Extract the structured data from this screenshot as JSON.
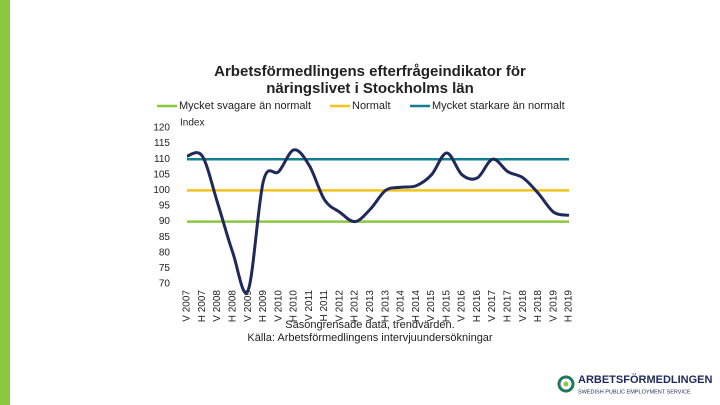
{
  "chart_data": {
    "type": "line",
    "title": [
      "Arbetsförmedlingens efterfrågeindikator för",
      "näringslivet i Stockholms län"
    ],
    "y_label": "Index",
    "categories": [
      "V 2007",
      "H 2007",
      "V 2008",
      "H 2008",
      "V 2009",
      "H 2009",
      "V 2010",
      "H 2010",
      "V 2011",
      "H 2011",
      "V 2012",
      "H 2012",
      "V 2013",
      "H 2013",
      "V 2014",
      "H 2014",
      "V 2015",
      "H 2015",
      "V 2016",
      "H 2016",
      "V 2017",
      "H 2017",
      "V 2018",
      "H 2018",
      "V 2019",
      "H 2019"
    ],
    "main_series": {
      "color": "#1f2a5a",
      "values": [
        111,
        111,
        96,
        80,
        68,
        103,
        106,
        113,
        108,
        97,
        93,
        90,
        94,
        100,
        101,
        101.5,
        105,
        112,
        105,
        104,
        110,
        106,
        104,
        99,
        93,
        92
      ]
    },
    "reference_lines": [
      {
        "name": "Mycket svagare än normalt",
        "color": "#8dc63f",
        "value": 90
      },
      {
        "name": "Normalt",
        "color": "#f0c419",
        "value": 100
      },
      {
        "name": "Mycket starkare än normalt",
        "color": "#13808f",
        "value": 110
      }
    ],
    "ylim": [
      70,
      120
    ],
    "yticks": [
      70,
      75,
      80,
      85,
      90,
      95,
      100,
      105,
      110,
      115,
      120
    ],
    "notes": [
      "Säsongrensade data, trendvärden.",
      "Källa: Arbetsförmedlingens intervjuundersökningar"
    ]
  },
  "logo": {
    "name": "ARBETSFÖRMEDLINGEN",
    "tagline": "SWEDISH PUBLIC EMPLOYMENT SERVICE"
  }
}
